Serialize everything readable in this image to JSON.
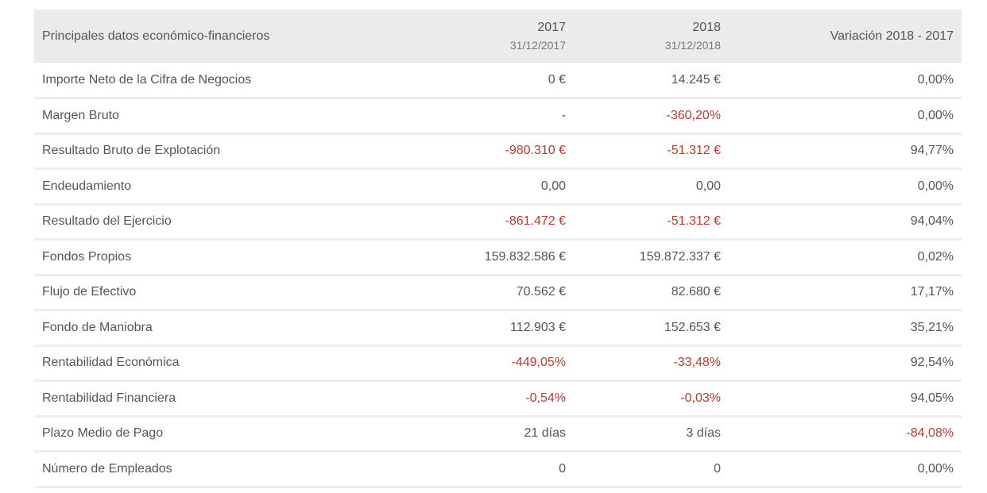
{
  "table": {
    "header": {
      "label": "Principales datos económico-financieros",
      "col_2017": {
        "year": "2017",
        "date": "31/12/2017"
      },
      "col_2018": {
        "year": "2018",
        "date": "31/12/2018"
      },
      "variation": "Variación 2018 - 2017"
    },
    "rows": [
      {
        "label": "Importe Neto de la Cifra de Negocios",
        "v2017": "0 €",
        "v2018": "14.245 €",
        "variation": "0,00%",
        "neg2017": false,
        "neg2018": false,
        "negVar": false
      },
      {
        "label": "Margen Bruto",
        "v2017": "-",
        "v2018": "-360,20%",
        "variation": "0,00%",
        "neg2017": false,
        "neg2018": true,
        "negVar": false
      },
      {
        "label": "Resultado Bruto de Explotación",
        "v2017": "-980.310 €",
        "v2018": "-51.312 €",
        "variation": "94,77%",
        "neg2017": true,
        "neg2018": true,
        "negVar": false
      },
      {
        "label": "Endeudamiento",
        "v2017": "0,00",
        "v2018": "0,00",
        "variation": "0,00%",
        "neg2017": false,
        "neg2018": false,
        "negVar": false
      },
      {
        "label": "Resultado del Ejercicio",
        "v2017": "-861.472 €",
        "v2018": "-51.312 €",
        "variation": "94,04%",
        "neg2017": true,
        "neg2018": true,
        "negVar": false
      },
      {
        "label": "Fondos Propios",
        "v2017": "159.832.586 €",
        "v2018": "159.872.337 €",
        "variation": "0,02%",
        "neg2017": false,
        "neg2018": false,
        "negVar": false
      },
      {
        "label": "Flujo de Efectivo",
        "v2017": "70.562 €",
        "v2018": "82.680 €",
        "variation": "17,17%",
        "neg2017": false,
        "neg2018": false,
        "negVar": false
      },
      {
        "label": "Fondo de Maniobra",
        "v2017": "112.903 €",
        "v2018": "152.653 €",
        "variation": "35,21%",
        "neg2017": false,
        "neg2018": false,
        "negVar": false
      },
      {
        "label": "Rentabilidad Económica",
        "v2017": "-449,05%",
        "v2018": "-33,48%",
        "variation": "92,54%",
        "neg2017": true,
        "neg2018": true,
        "negVar": false
      },
      {
        "label": "Rentabilidad Financiera",
        "v2017": "-0,54%",
        "v2018": "-0,03%",
        "variation": "94,05%",
        "neg2017": true,
        "neg2018": true,
        "negVar": false
      },
      {
        "label": "Plazo Medio de Pago",
        "v2017": "21 días",
        "v2018": "3 días",
        "variation": "-84,08%",
        "neg2017": false,
        "neg2018": false,
        "negVar": true
      },
      {
        "label": "Número de Empleados",
        "v2017": "0",
        "v2018": "0",
        "variation": "0,00%",
        "neg2017": false,
        "neg2018": false,
        "negVar": false
      }
    ]
  },
  "colors": {
    "negative": "#c0392b",
    "text": "#555555",
    "header_bg": "#ebebeb",
    "row_separator": "#eeeeee"
  }
}
